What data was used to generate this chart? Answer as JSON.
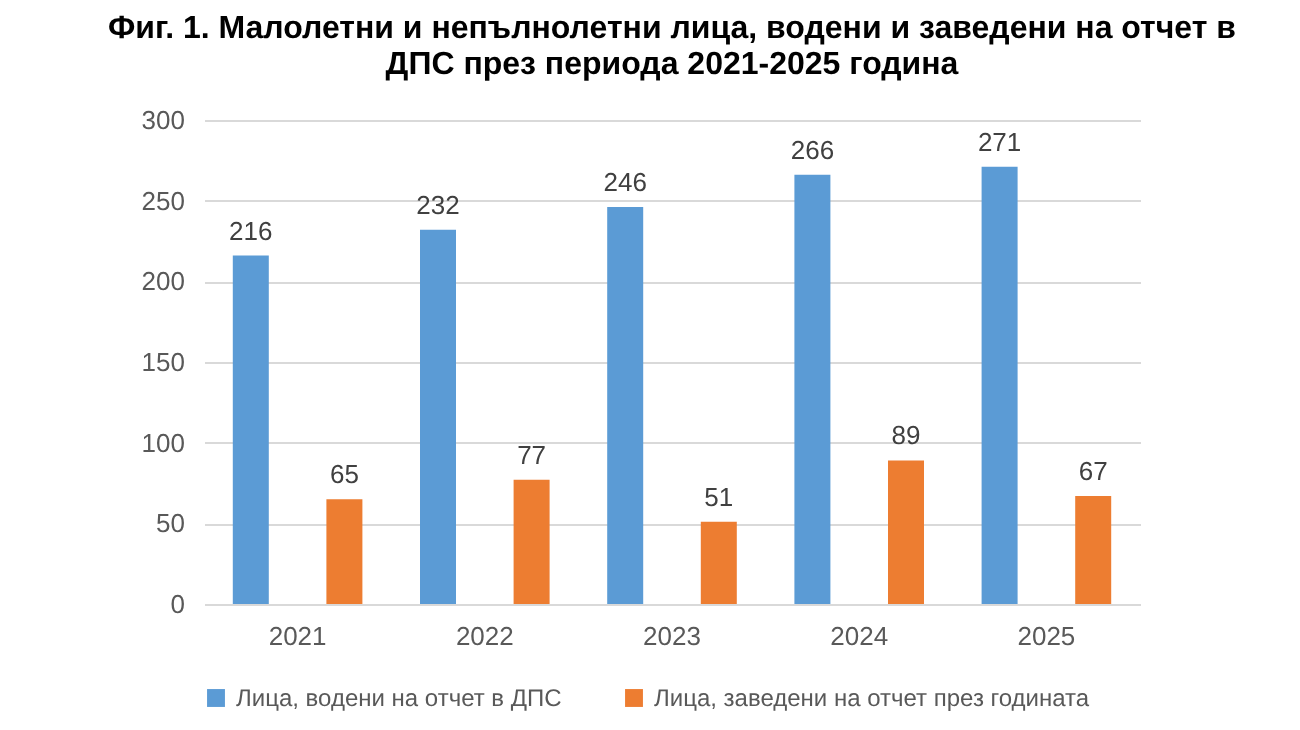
{
  "chart_data": {
    "type": "bar",
    "title": "Фиг. 1. Малолетни и непълнолетни лица, водени и заведени на отчет в ДПС през периода 2021-2025 година",
    "categories": [
      "2021",
      "2022",
      "2023",
      "2024",
      "2025"
    ],
    "series": [
      {
        "name": "Лица, водени на отчет в ДПС",
        "color": "#5b9bd5",
        "values": [
          216,
          232,
          246,
          266,
          271
        ]
      },
      {
        "name": "Лица, заведени на отчет през годината",
        "color": "#ed7d31",
        "values": [
          65,
          77,
          51,
          89,
          67
        ]
      }
    ],
    "ylim": [
      0,
      300
    ],
    "yticks": [
      0,
      50,
      100,
      150,
      200,
      250,
      300
    ],
    "grid": "y",
    "legend": "bottom",
    "data_labels": true
  }
}
